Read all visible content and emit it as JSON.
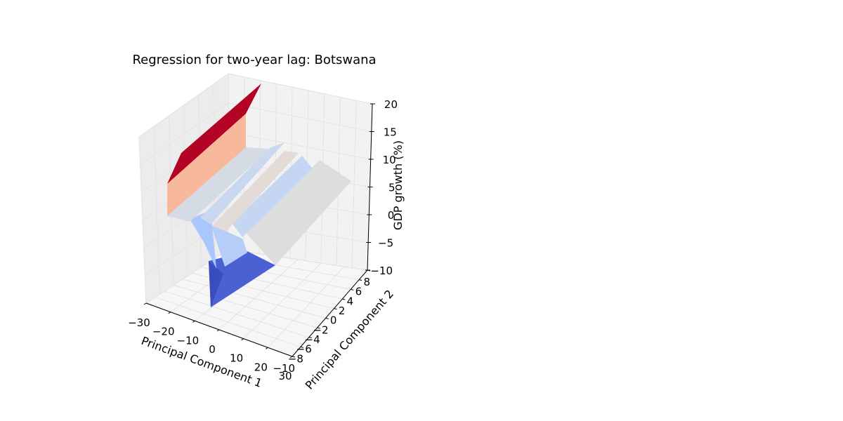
{
  "chart_data": {
    "type": "surface3d",
    "title": "Regression for two-year lag: Botswana",
    "xlabel": "Principal Component 1",
    "ylabel": "Principal Component 2",
    "zlabel": "GDP growth (%)",
    "xlim": [
      -30,
      30
    ],
    "ylim": [
      -10,
      8
    ],
    "zlim": [
      -10,
      20
    ],
    "x_ticks": [
      "−30",
      "−20",
      "−10",
      "0",
      "10",
      "20",
      "30"
    ],
    "y_ticks": [
      "−10",
      "−8",
      "−6",
      "−4",
      "−2",
      "0",
      "2",
      "4",
      "6",
      "8"
    ],
    "z_ticks": [
      "−10",
      "−5",
      "0",
      "5",
      "10",
      "15",
      "20"
    ],
    "colormap": "coolwarm",
    "grid": true,
    "colors": {
      "pane_left": "#ececec",
      "pane_back": "#f2f2f2",
      "pane_floor": "#f6f6f6",
      "high": "#b40426",
      "upper": "#f7b89c",
      "mid": "#d5dbe5",
      "neutral": "#dcdddd",
      "light": "#c5d6f2",
      "low_light": "#aac7fd",
      "low": "#3b4cc0",
      "low2": "#4961d2"
    }
  }
}
